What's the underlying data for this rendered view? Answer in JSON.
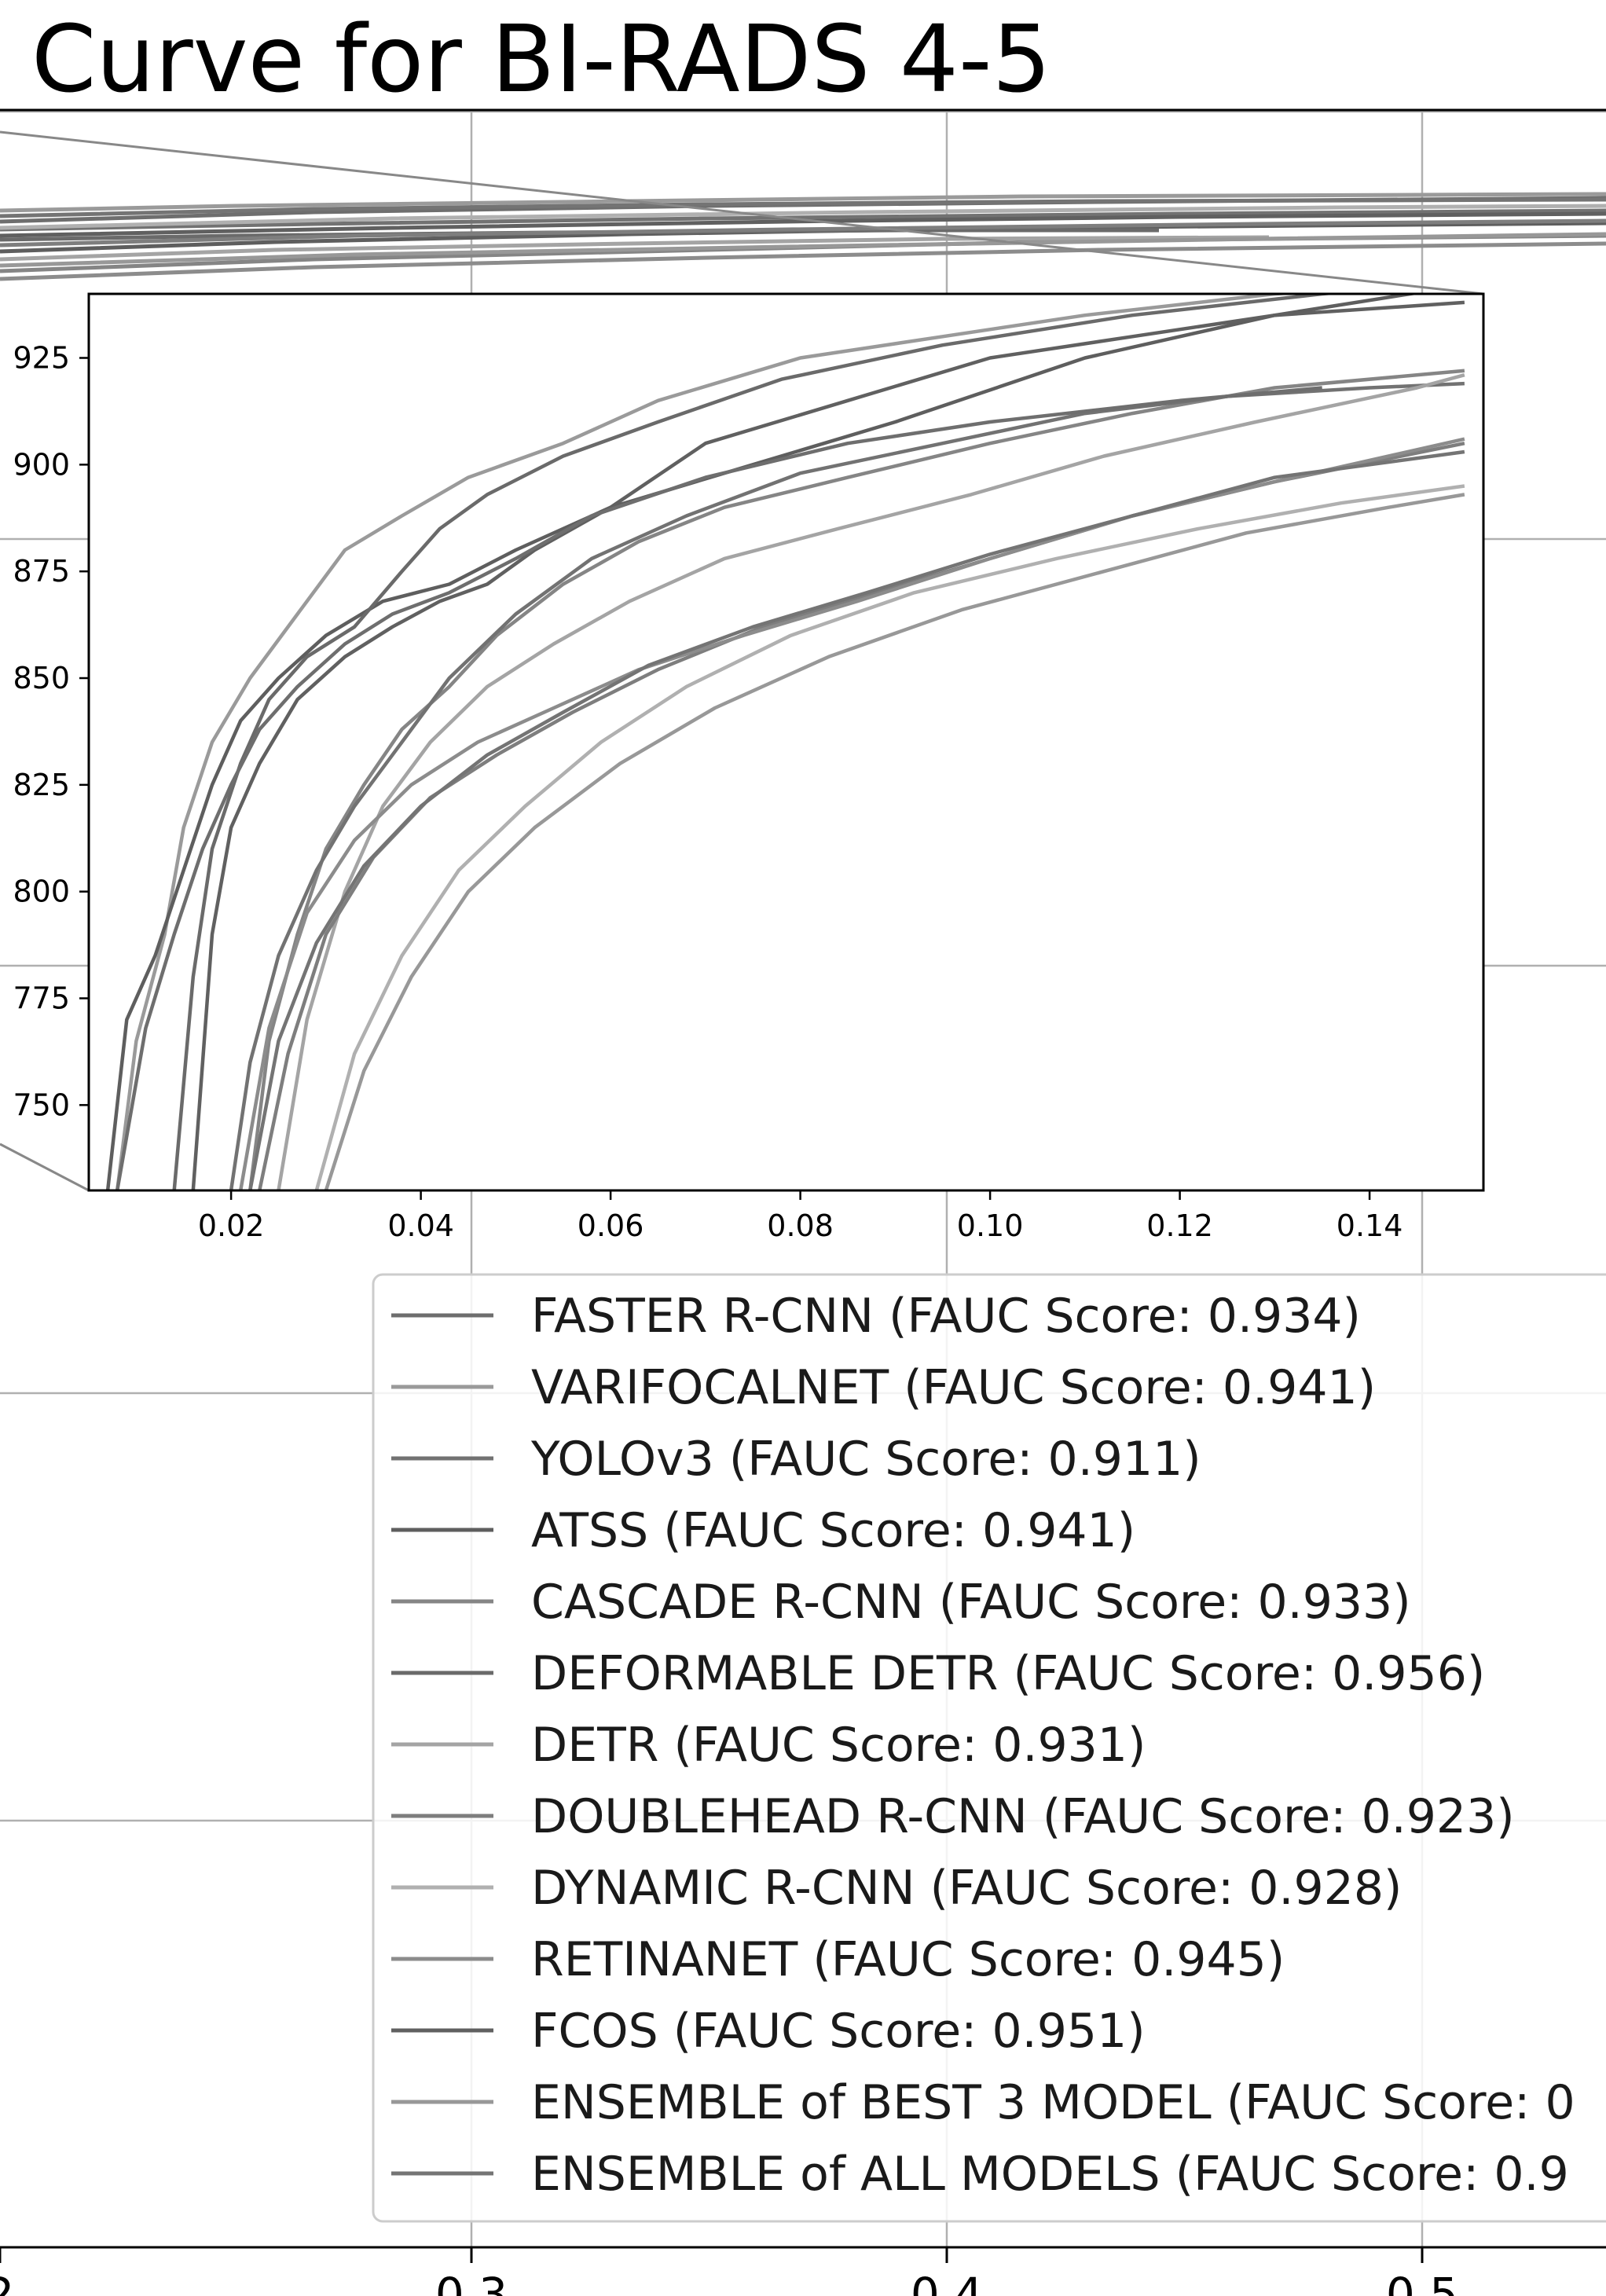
{
  "chart_data": [
    {
      "type": "line",
      "title": "Curve for BI-RADS 4-5",
      "xlabel": "",
      "ylabel": "",
      "x_ticks": [
        "2",
        "0.3",
        "0.4",
        "0.5"
      ],
      "xlim": [
        0.2,
        0.54
      ],
      "grid": true,
      "legend_position": "lower-right",
      "legend": [
        {
          "name": "FASTER R-CNN (FAUC Score: 0.934)",
          "color": "#6e6e6e"
        },
        {
          "name": "VARIFOCALNET (FAUC Score: 0.941)",
          "color": "#9a9a9a"
        },
        {
          "name": "YOLOv3 (FAUC Score: 0.911)",
          "color": "#727272"
        },
        {
          "name": "ATSS (FAUC Score: 0.941)",
          "color": "#5e5e5e"
        },
        {
          "name": "CASCADE R-CNN (FAUC Score: 0.933)",
          "color": "#858585"
        },
        {
          "name": "DEFORMABLE DETR (FAUC Score: 0.956)",
          "color": "#6a6a6a"
        },
        {
          "name": "DETR (FAUC Score: 0.931)",
          "color": "#a4a4a4"
        },
        {
          "name": "DOUBLEHEAD R-CNN (FAUC Score: 0.923)",
          "color": "#7e7e7e"
        },
        {
          "name": "DYNAMIC R-CNN (FAUC Score: 0.928)",
          "color": "#b0b0b0"
        },
        {
          "name": "RETINANET (FAUC Score: 0.945)",
          "color": "#8c8c8c"
        },
        {
          "name": "FCOS (FAUC Score: 0.951)",
          "color": "#606060"
        },
        {
          "name": "ENSEMBLE of BEST 3 MODEL (FAUC Score: 0",
          "color": "#989898"
        },
        {
          "name": "ENSEMBLE of ALL MODELS (FAUC Score: 0.9",
          "color": "#747474"
        }
      ]
    },
    {
      "type": "line",
      "title": "",
      "xlabel": "",
      "ylabel": "",
      "xlim": [
        0.005,
        0.152
      ],
      "ylim": [
        0.73,
        0.94
      ],
      "x_ticks": [
        "0.02",
        "0.04",
        "0.06",
        "0.08",
        "0.10",
        "0.12",
        "0.14"
      ],
      "y_ticks": [
        "925",
        "900",
        "875",
        "850",
        "825",
        "800",
        "775",
        "750"
      ],
      "grid": false,
      "series": [
        {
          "color": "#9a9a9a",
          "x": [
            0.008,
            0.01,
            0.013,
            0.015,
            0.018,
            0.022,
            0.027,
            0.032,
            0.038,
            0.045,
            0.055,
            0.065,
            0.08,
            0.095,
            0.11,
            0.13,
            0.15
          ],
          "y": [
            0.73,
            0.765,
            0.79,
            0.815,
            0.835,
            0.85,
            0.865,
            0.88,
            0.888,
            0.897,
            0.905,
            0.915,
            0.925,
            0.93,
            0.935,
            0.94,
            0.943
          ]
        },
        {
          "color": "#5e5e5e",
          "x": [
            0.007,
            0.009,
            0.012,
            0.015,
            0.018,
            0.021,
            0.025,
            0.03,
            0.036,
            0.043,
            0.05,
            0.06,
            0.075,
            0.09,
            0.11,
            0.13,
            0.15
          ],
          "y": [
            0.73,
            0.77,
            0.785,
            0.805,
            0.825,
            0.84,
            0.85,
            0.86,
            0.868,
            0.872,
            0.88,
            0.89,
            0.9,
            0.91,
            0.925,
            0.935,
            0.942
          ]
        },
        {
          "color": "#6a6a6a",
          "x": [
            0.014,
            0.016,
            0.018,
            0.021,
            0.024,
            0.028,
            0.033,
            0.038,
            0.042,
            0.047,
            0.055,
            0.065,
            0.078,
            0.095,
            0.115,
            0.135,
            0.15
          ],
          "y": [
            0.73,
            0.78,
            0.81,
            0.83,
            0.845,
            0.855,
            0.862,
            0.875,
            0.885,
            0.893,
            0.902,
            0.91,
            0.92,
            0.928,
            0.935,
            0.94,
            0.943
          ]
        },
        {
          "color": "#606060",
          "x": [
            0.016,
            0.018,
            0.02,
            0.023,
            0.027,
            0.032,
            0.037,
            0.042,
            0.047,
            0.052,
            0.06,
            0.07,
            0.085,
            0.1,
            0.115,
            0.13,
            0.15
          ],
          "y": [
            0.73,
            0.79,
            0.815,
            0.83,
            0.845,
            0.855,
            0.862,
            0.868,
            0.872,
            0.88,
            0.89,
            0.905,
            0.915,
            0.925,
            0.93,
            0.935,
            0.938
          ]
        },
        {
          "color": "#858585",
          "x": [
            0.022,
            0.024,
            0.027,
            0.03,
            0.034,
            0.038,
            0.043,
            0.048,
            0.055,
            0.063,
            0.072,
            0.085,
            0.1,
            0.115,
            0.13,
            0.15
          ],
          "y": [
            0.73,
            0.765,
            0.79,
            0.81,
            0.825,
            0.838,
            0.848,
            0.86,
            0.872,
            0.882,
            0.89,
            0.897,
            0.905,
            0.912,
            0.918,
            0.922
          ]
        },
        {
          "color": "#727272",
          "x": [
            0.02,
            0.022,
            0.025,
            0.029,
            0.033,
            0.038,
            0.043,
            0.05,
            0.058,
            0.068,
            0.08,
            0.095,
            0.11,
            0.125,
            0.14,
            0.15
          ],
          "y": [
            0.73,
            0.76,
            0.785,
            0.805,
            0.82,
            0.835,
            0.85,
            0.865,
            0.878,
            0.888,
            0.898,
            0.905,
            0.912,
            0.916,
            0.918,
            0.919
          ]
        },
        {
          "color": "#a4a4a4",
          "x": [
            0.025,
            0.028,
            0.032,
            0.036,
            0.041,
            0.047,
            0.054,
            0.062,
            0.072,
            0.084,
            0.098,
            0.112,
            0.128,
            0.145,
            0.15
          ],
          "y": [
            0.73,
            0.77,
            0.8,
            0.82,
            0.835,
            0.848,
            0.858,
            0.868,
            0.878,
            0.885,
            0.893,
            0.902,
            0.91,
            0.918,
            0.921
          ]
        },
        {
          "color": "#7e7e7e",
          "x": [
            0.023,
            0.026,
            0.03,
            0.035,
            0.041,
            0.048,
            0.056,
            0.065,
            0.076,
            0.088,
            0.1,
            0.115,
            0.13,
            0.15
          ],
          "y": [
            0.73,
            0.762,
            0.79,
            0.808,
            0.822,
            0.832,
            0.842,
            0.852,
            0.862,
            0.87,
            0.878,
            0.888,
            0.896,
            0.905
          ]
        },
        {
          "color": "#b0b0b0",
          "x": [
            0.029,
            0.033,
            0.038,
            0.044,
            0.051,
            0.059,
            0.068,
            0.079,
            0.092,
            0.107,
            0.122,
            0.137,
            0.15
          ],
          "y": [
            0.73,
            0.762,
            0.785,
            0.805,
            0.82,
            0.835,
            0.848,
            0.86,
            0.87,
            0.878,
            0.885,
            0.891,
            0.895
          ]
        },
        {
          "color": "#8c8c8c",
          "x": [
            0.021,
            0.024,
            0.028,
            0.033,
            0.039,
            0.046,
            0.054,
            0.063,
            0.074,
            0.086,
            0.1,
            0.115,
            0.13,
            0.15
          ],
          "y": [
            0.73,
            0.768,
            0.795,
            0.812,
            0.825,
            0.835,
            0.843,
            0.852,
            0.86,
            0.868,
            0.878,
            0.888,
            0.896,
            0.906
          ]
        },
        {
          "color": "#989898",
          "x": [
            0.03,
            0.034,
            0.039,
            0.045,
            0.052,
            0.061,
            0.071,
            0.083,
            0.097,
            0.112,
            0.127,
            0.142,
            0.15
          ],
          "y": [
            0.73,
            0.758,
            0.78,
            0.8,
            0.815,
            0.83,
            0.843,
            0.855,
            0.866,
            0.875,
            0.884,
            0.89,
            0.893
          ]
        },
        {
          "color": "#747474",
          "x": [
            0.022,
            0.025,
            0.029,
            0.034,
            0.04,
            0.047,
            0.055,
            0.064,
            0.075,
            0.087,
            0.1,
            0.115,
            0.13,
            0.15
          ],
          "y": [
            0.73,
            0.765,
            0.788,
            0.806,
            0.82,
            0.832,
            0.842,
            0.853,
            0.862,
            0.87,
            0.879,
            0.888,
            0.897,
            0.903
          ]
        },
        {
          "color": "#6e6e6e",
          "x": [
            0.008,
            0.011,
            0.014,
            0.017,
            0.02,
            0.023,
            0.027,
            0.032,
            0.037,
            0.043,
            0.05,
            0.058,
            0.07,
            0.085,
            0.1,
            0.12,
            0.135
          ],
          "y": [
            0.73,
            0.768,
            0.79,
            0.81,
            0.825,
            0.838,
            0.848,
            0.858,
            0.865,
            0.87,
            0.878,
            0.888,
            0.897,
            0.905,
            0.91,
            0.915,
            0.918
          ]
        }
      ]
    }
  ]
}
